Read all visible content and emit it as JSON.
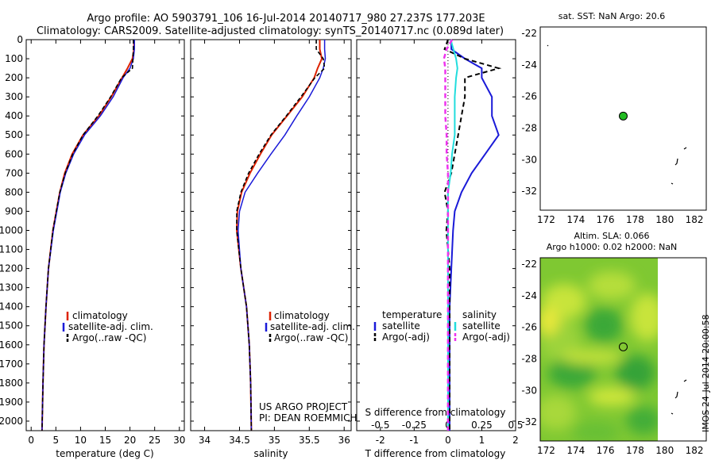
{
  "header": {
    "line1": "Argo profile: AO 5903791_106 16-Jul-2014 20140717_980 27.237S 177.203E",
    "line2": "Climatology: CARS2009. Satellite-adjusted climatology: synTS_20140717.nc (0.089d later)"
  },
  "credits": {
    "line1": "US ARGO PROJECT",
    "line2": "PI: DEAN ROEMMICH"
  },
  "side_label": "IMOS 24-Jul-2014 20:00:58",
  "colors": {
    "climatology": "#dd2200",
    "satellite": "#1a1ad8",
    "argo": "#000000",
    "s_satellite": "#22dddd",
    "s_argo": "#ee33ee",
    "marker": "#22bb22"
  },
  "legend_labels": {
    "clim": "climatology",
    "sat": "satellite-adj. clim.",
    "argo": "Argo(..raw -QC)"
  },
  "diff_legend": {
    "t_title": "temperature",
    "s_title": "salinity",
    "sat": "satellite",
    "argo": "Argo(-adj)"
  },
  "chart_data": [
    {
      "type": "line",
      "id": "temperature",
      "xlabel": "temperature (deg C)",
      "ylim": [
        2050,
        0
      ],
      "xlim": [
        -1,
        31
      ],
      "xticks": [
        0,
        5,
        10,
        15,
        20,
        25,
        30
      ],
      "yticks": [
        0,
        100,
        200,
        300,
        400,
        500,
        600,
        700,
        800,
        900,
        1000,
        1100,
        1200,
        1300,
        1400,
        1500,
        1600,
        1700,
        1800,
        1900,
        2000
      ],
      "depth": [
        0,
        50,
        100,
        150,
        200,
        300,
        400,
        500,
        600,
        700,
        800,
        900,
        1000,
        1200,
        1400,
        1600,
        1800,
        2050
      ],
      "series": [
        {
          "name": "climatology",
          "values": [
            20.8,
            20.8,
            20.5,
            19.5,
            18.4,
            16.2,
            13.7,
            10.5,
            8.3,
            6.8,
            5.8,
            5.1,
            4.4,
            3.5,
            3.0,
            2.6,
            2.4,
            2.2
          ]
        },
        {
          "name": "satellite-adj. clim.",
          "values": [
            20.9,
            20.9,
            20.7,
            20.0,
            18.6,
            16.6,
            14.0,
            10.8,
            8.6,
            7.0,
            5.9,
            5.2,
            4.5,
            3.5,
            3.0,
            2.6,
            2.4,
            2.2
          ]
        },
        {
          "name": "Argo(..raw -QC)",
          "values": [
            20.7,
            20.7,
            20.6,
            20.5,
            18.3,
            16.1,
            13.5,
            10.5,
            8.4,
            6.9,
            5.8,
            5.1,
            4.4,
            3.5,
            3.0,
            2.6,
            2.4,
            2.2
          ]
        }
      ]
    },
    {
      "type": "line",
      "id": "salinity",
      "xlabel": "salinity",
      "ylim": [
        2050,
        0
      ],
      "xlim": [
        33.8,
        36.1
      ],
      "xticks": [
        34,
        34.5,
        35,
        35.5,
        36
      ],
      "depth": [
        0,
        50,
        100,
        150,
        200,
        300,
        400,
        500,
        600,
        700,
        800,
        900,
        1000,
        1200,
        1400,
        1600,
        1800,
        2050
      ],
      "series": [
        {
          "name": "climatology",
          "values": [
            35.65,
            35.65,
            35.68,
            35.62,
            35.57,
            35.4,
            35.18,
            34.96,
            34.8,
            34.65,
            34.53,
            34.47,
            34.46,
            34.52,
            34.6,
            34.64,
            34.66,
            34.67
          ]
        },
        {
          "name": "satellite-adj. clim.",
          "values": [
            35.72,
            35.72,
            35.73,
            35.7,
            35.65,
            35.5,
            35.32,
            35.15,
            34.95,
            34.76,
            34.58,
            34.5,
            34.48,
            34.52,
            34.6,
            34.64,
            34.66,
            34.67
          ]
        },
        {
          "name": "Argo(..raw -QC)",
          "values": [
            35.6,
            35.6,
            35.7,
            35.72,
            35.58,
            35.38,
            35.17,
            34.95,
            34.78,
            34.63,
            34.52,
            34.46,
            34.46,
            34.52,
            34.6,
            34.64,
            34.66,
            34.67
          ]
        }
      ]
    },
    {
      "type": "line",
      "id": "difference",
      "xlabel": "T difference from climatology",
      "xlabel2": "S difference from climatology",
      "ylim": [
        2050,
        0
      ],
      "xlim": [
        -2.7,
        2.0
      ],
      "xticks": [
        -2,
        -1,
        0,
        1,
        2
      ],
      "xticks2": [
        -0.5,
        -0.25,
        0,
        0.25,
        0.5
      ],
      "xticks2_labels": [
        "-0.5",
        "-0.25",
        "0",
        "0.25",
        "0.5"
      ],
      "depth": [
        0,
        50,
        100,
        150,
        200,
        300,
        400,
        500,
        600,
        700,
        800,
        900,
        1000,
        1200,
        1400,
        1600,
        1800,
        2050
      ],
      "series": [
        {
          "name": "satellite",
          "values": [
            0.1,
            0.1,
            0.5,
            1.0,
            1.0,
            1.3,
            1.3,
            1.5,
            1.1,
            0.7,
            0.4,
            0.2,
            0.15,
            0.1,
            0.05,
            0.05,
            0.05,
            0.05
          ]
        },
        {
          "name": "Argo(-adj)",
          "values": [
            0.0,
            -0.1,
            0.5,
            1.5,
            0.5,
            0.5,
            0.4,
            0.3,
            0.2,
            0.1,
            -0.1,
            0.0,
            -0.05,
            0.05,
            0.05,
            0.05,
            0.05,
            0.05
          ]
        },
        {
          "name": "satellite",
          "values": [
            0.02,
            0.04,
            0.06,
            0.07,
            0.06,
            0.05,
            0.05,
            0.05,
            0.03,
            0.02,
            0.0,
            0.0,
            0.0,
            0.0,
            0.0,
            0.0,
            0.0,
            0.0
          ]
        },
        {
          "name": "Argo(-adj)",
          "values": [
            0.03,
            -0.01,
            -0.03,
            -0.02,
            -0.02,
            -0.02,
            -0.02,
            -0.01,
            -0.01,
            0.0,
            0.0,
            0.0,
            0.0,
            0.0,
            0.0,
            0.0,
            0.0,
            0.0
          ]
        }
      ]
    },
    {
      "type": "scatter",
      "id": "sst-map",
      "title": "sat. SST: NaN Argo: 20.6",
      "xlim": [
        171.6,
        182.8
      ],
      "ylim": [
        -33.2,
        -21.6
      ],
      "xticks": [
        172,
        174,
        176,
        178,
        180,
        182
      ],
      "yticks": [
        -22,
        -24,
        -26,
        -28,
        -30,
        -32
      ],
      "points": [
        {
          "x": 177.2,
          "y": -27.24
        }
      ]
    },
    {
      "type": "heatmap",
      "id": "sla-map",
      "title": "Altim. SLA: 0.066",
      "subtitle": "Argo h1000: 0.02 h2000: NaN",
      "xlim": [
        171.6,
        182.8
      ],
      "ylim": [
        -33.2,
        -21.6
      ],
      "xticks": [
        172,
        174,
        176,
        178,
        180,
        182
      ],
      "yticks": [
        -22,
        -24,
        -26,
        -28,
        -30,
        -32
      ],
      "points": [
        {
          "x": 177.2,
          "y": -27.24
        }
      ]
    }
  ]
}
